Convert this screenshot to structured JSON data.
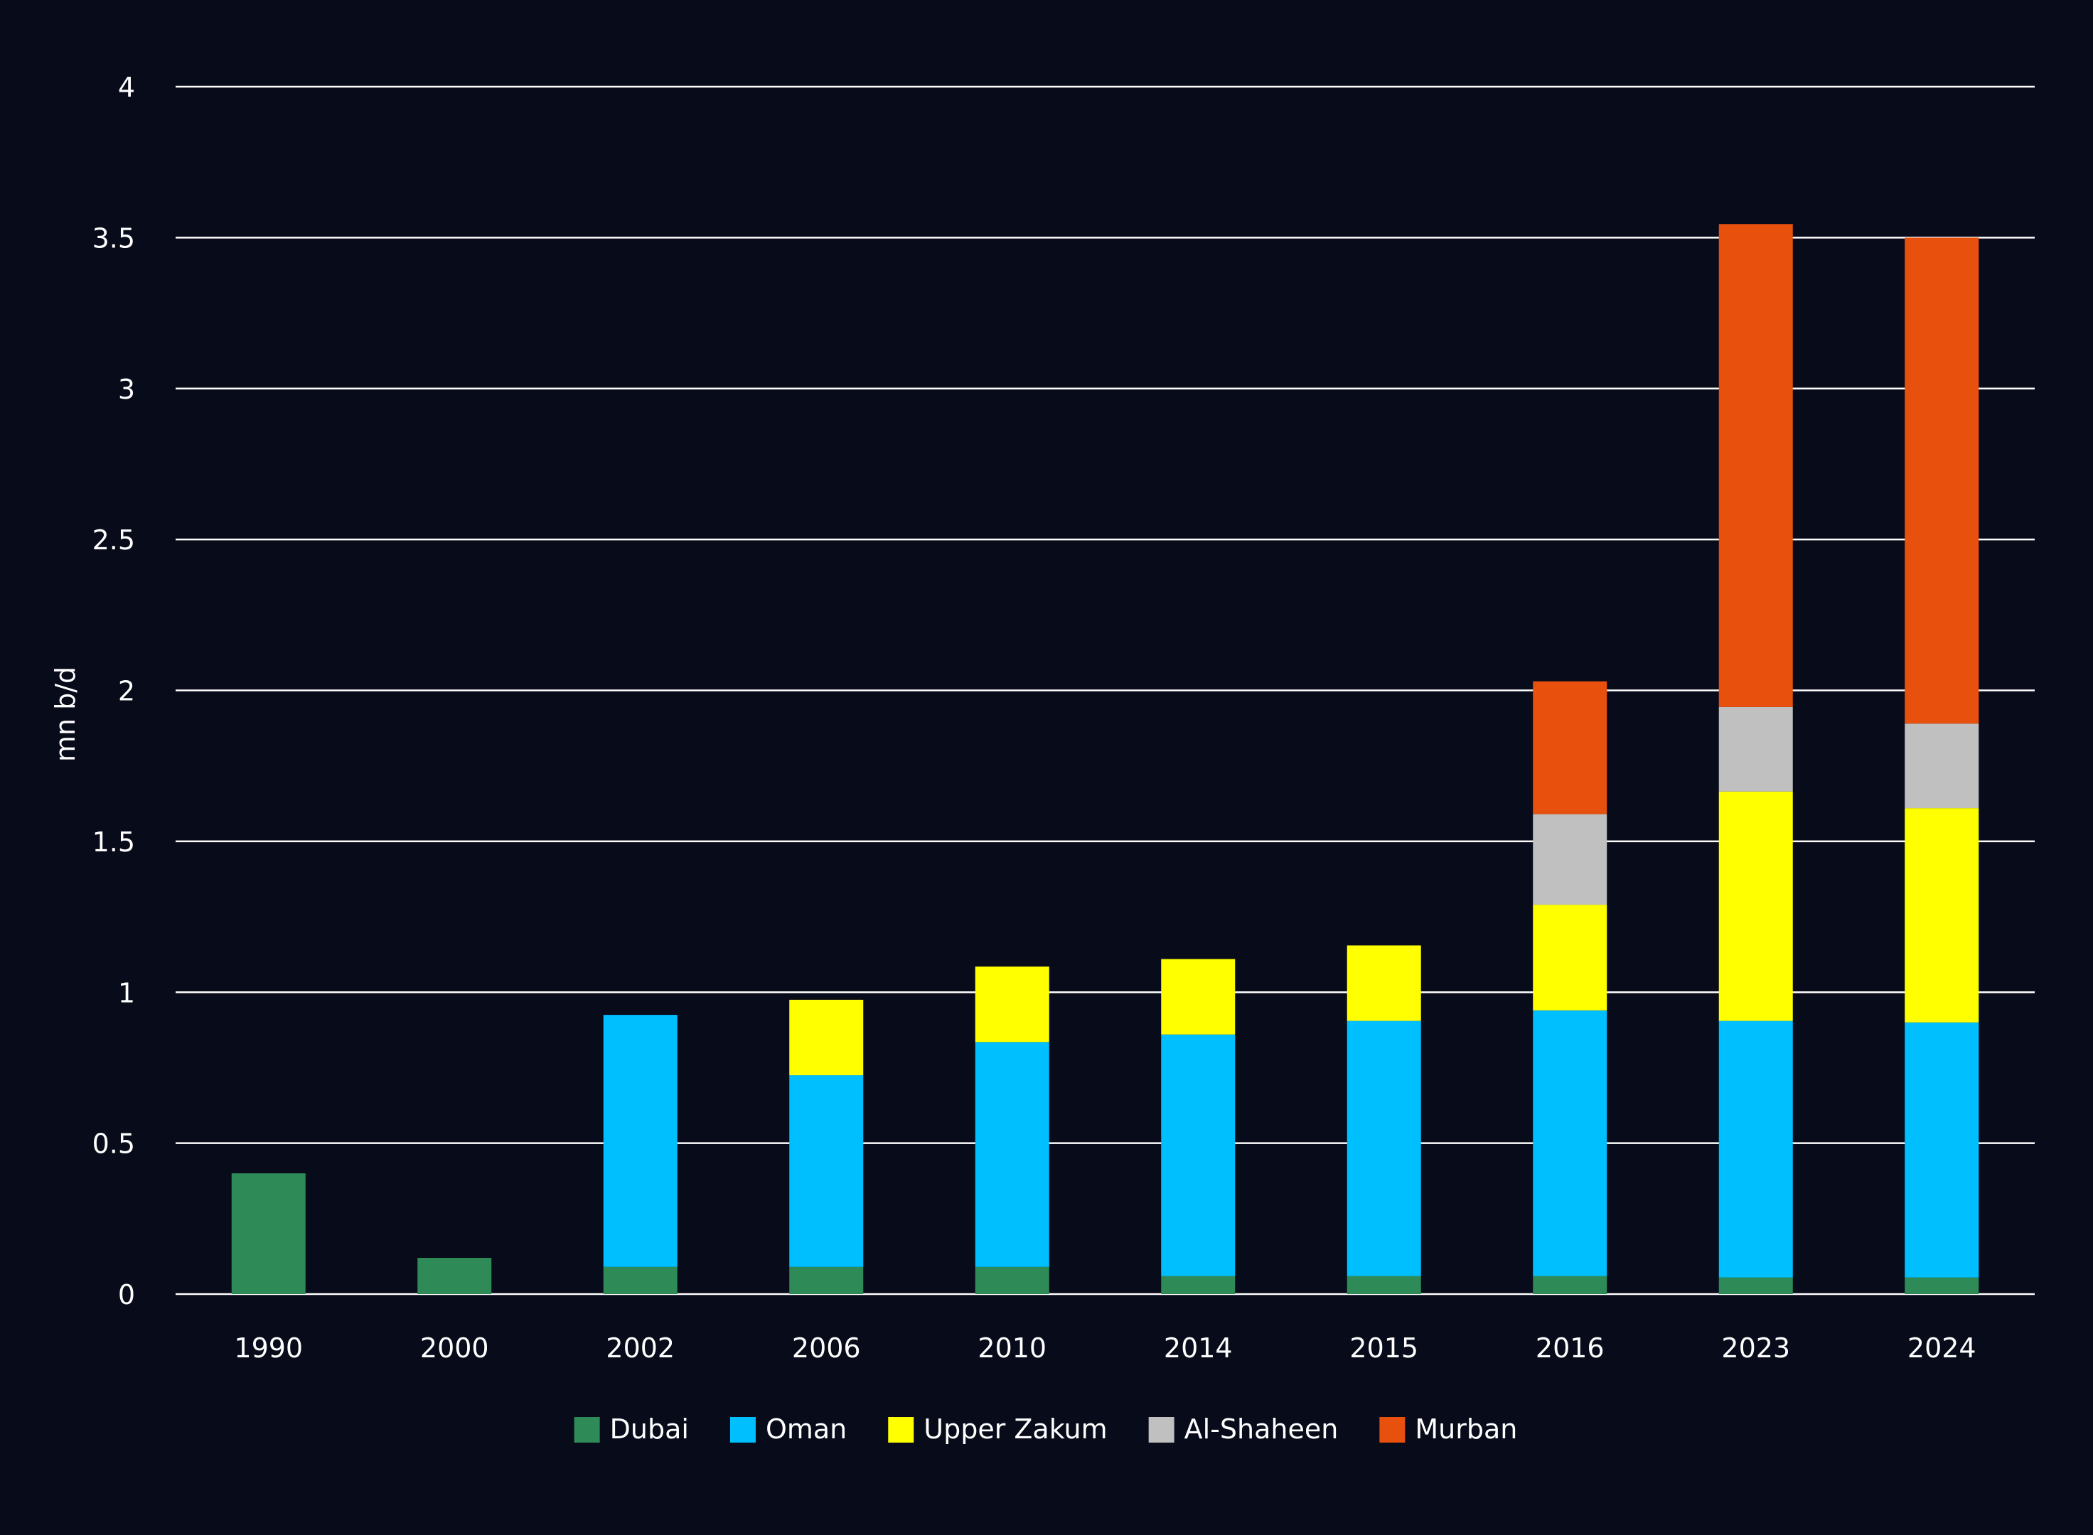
{
  "chart_data": {
    "type": "bar",
    "stacked": true,
    "title": "",
    "xlabel": "",
    "ylabel": "mn b/d",
    "ylim": [
      0,
      4
    ],
    "y_ticks": [
      "0",
      "0.5",
      "1",
      "1.5",
      "2",
      "2.5",
      "3",
      "3.5",
      "4"
    ],
    "grid": true,
    "legend_position": "bottom",
    "categories": [
      "1990",
      "2000",
      "2002",
      "2006",
      "2010",
      "2014",
      "2015",
      "2016",
      "2023",
      "2024"
    ],
    "series": [
      {
        "name": "Dubai",
        "color": "#2e8b57",
        "values": [
          0.4,
          0.12,
          0.09,
          0.09,
          0.09,
          0.06,
          0.06,
          0.06,
          0.055,
          0.055
        ]
      },
      {
        "name": "Oman",
        "color": "#00bfff",
        "values": [
          0,
          0,
          0.835,
          0.635,
          0.745,
          0.8,
          0.845,
          0.88,
          0.85,
          0.845
        ]
      },
      {
        "name": "Upper Zakum",
        "color": "#ffff00",
        "values": [
          0,
          0,
          0,
          0.25,
          0.25,
          0.25,
          0.25,
          0.35,
          0.76,
          0.71
        ]
      },
      {
        "name": "Al-Shaheen",
        "color": "#c0c0c0",
        "values": [
          0,
          0,
          0,
          0,
          0,
          0,
          0,
          0.3,
          0.28,
          0.28
        ]
      },
      {
        "name": "Murban",
        "color": "#e8500e",
        "values": [
          0,
          0,
          0,
          0,
          0,
          0,
          0,
          0.44,
          1.6,
          1.61
        ]
      }
    ]
  }
}
